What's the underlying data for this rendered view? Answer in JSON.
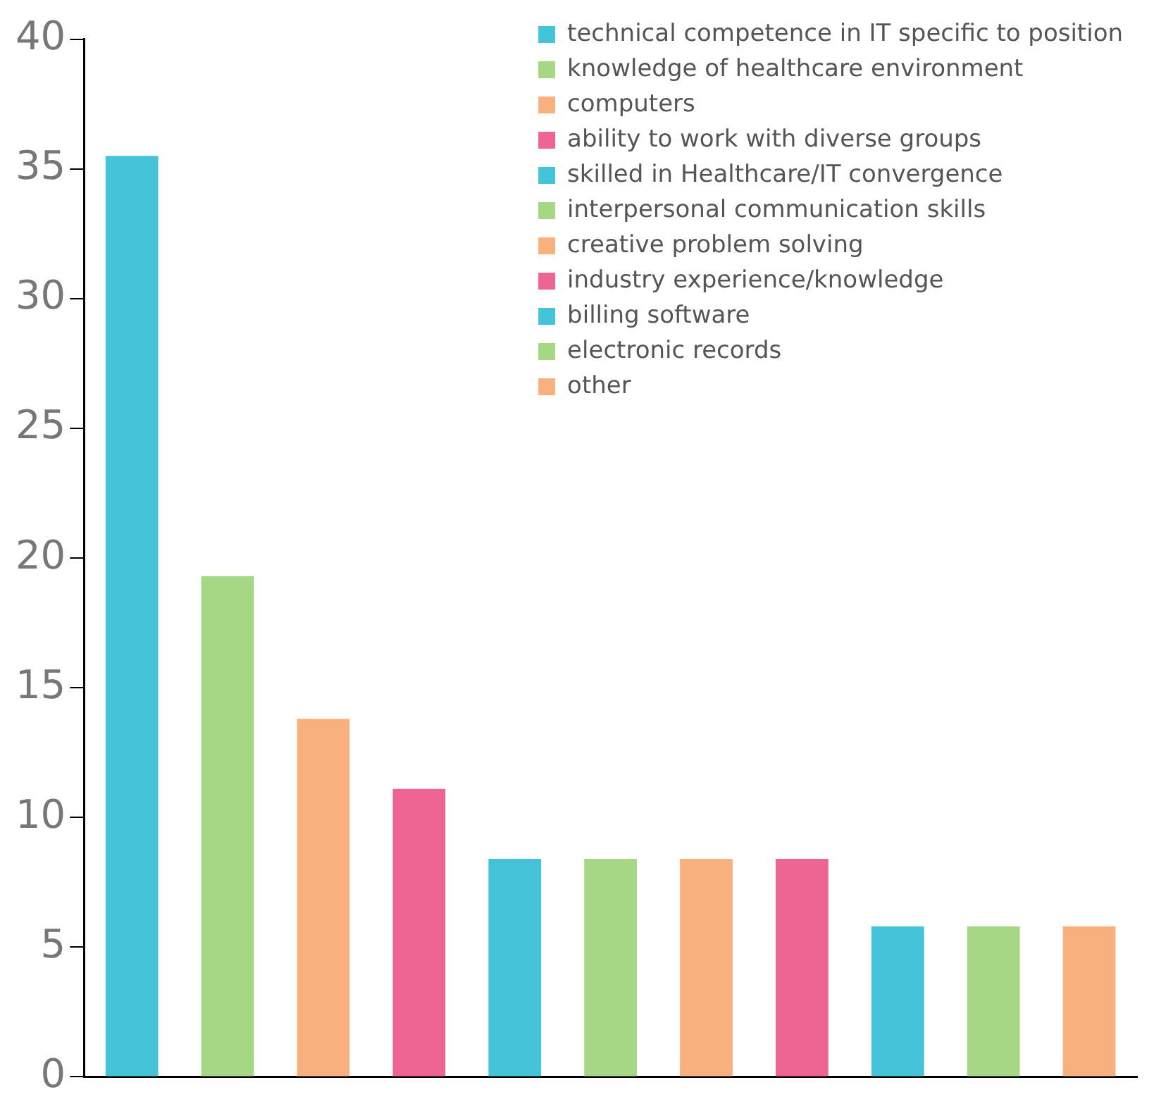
{
  "chart_data": {
    "type": "bar",
    "categories": [
      null
    ],
    "series": [
      {
        "name": "technical competence in IT specific to position",
        "color": "#45c3d8",
        "values": [
          35.5
        ]
      },
      {
        "name": "knowledge of healthcare environment",
        "color": "#a6d785",
        "values": [
          19.3
        ]
      },
      {
        "name": "computers",
        "color": "#f9b07f",
        "values": [
          13.8
        ]
      },
      {
        "name": "ability to work with diverse groups",
        "color": "#ee6593",
        "values": [
          11.1
        ]
      },
      {
        "name": "skilled in Healthcare/IT convergence",
        "color": "#45c3d8",
        "values": [
          8.4
        ]
      },
      {
        "name": "interpersonal communication skills",
        "color": "#a6d785",
        "values": [
          8.4
        ]
      },
      {
        "name": "creative problem solving",
        "color": "#f9b07f",
        "values": [
          8.4
        ]
      },
      {
        "name": "industry experience/knowledge",
        "color": "#ee6593",
        "values": [
          8.4
        ]
      },
      {
        "name": "billing software",
        "color": "#45c3d8",
        "values": [
          5.8
        ]
      },
      {
        "name": "electronic records",
        "color": "#a6d785",
        "values": [
          5.8
        ]
      },
      {
        "name": "other",
        "color": "#f9b07f",
        "values": [
          5.8
        ]
      }
    ],
    "ylim": [
      0,
      40
    ],
    "yticks": [
      0,
      5,
      10,
      15,
      20,
      25,
      30,
      35,
      40
    ],
    "tick_labels": "y",
    "grid": false,
    "legend": "top right"
  }
}
